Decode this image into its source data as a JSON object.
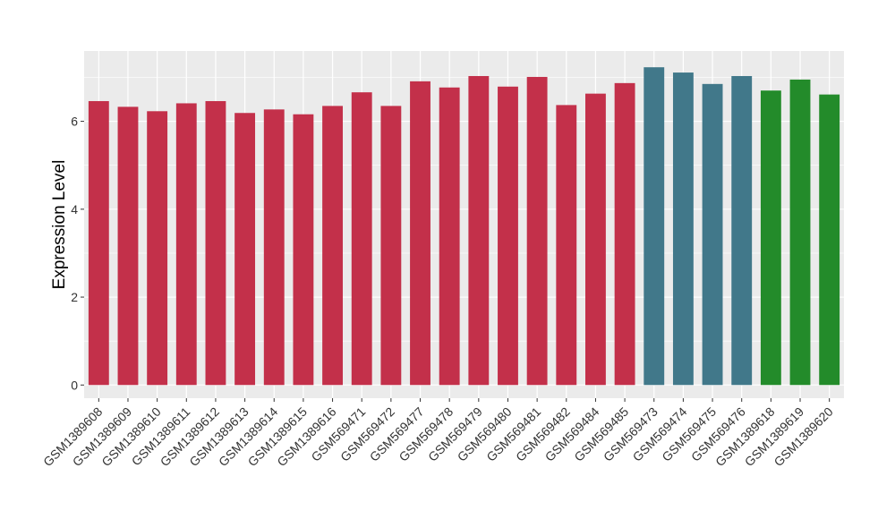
{
  "chart_data": {
    "type": "bar",
    "title": "",
    "xlabel": "",
    "ylabel": "Expression Level",
    "ylim": [
      -0.3,
      7.6
    ],
    "yticks": [
      0,
      2,
      4,
      6
    ],
    "grid": true,
    "legend": "none",
    "colors": {
      "red": "#C3304A",
      "teal": "#41788A",
      "green": "#238B2A",
      "panel_bg": "#EBEBEB",
      "grid_major": "#FFFFFF",
      "tick_mark": "#333333"
    },
    "categories": [
      "GSM1389608",
      "GSM1389609",
      "GSM1389610",
      "GSM1389611",
      "GSM1389612",
      "GSM1389613",
      "GSM1389614",
      "GSM1389615",
      "GSM1389616",
      "GSM569471",
      "GSM569472",
      "GSM569477",
      "GSM569478",
      "GSM569479",
      "GSM569480",
      "GSM569481",
      "GSM569482",
      "GSM569484",
      "GSM569485",
      "GSM569473",
      "GSM569474",
      "GSM569475",
      "GSM569476",
      "GSM1389618",
      "GSM1389619",
      "GSM1389620"
    ],
    "values": [
      6.46,
      6.33,
      6.23,
      6.41,
      6.46,
      6.19,
      6.27,
      6.16,
      6.35,
      6.66,
      6.35,
      6.91,
      6.77,
      7.03,
      6.79,
      7.01,
      6.37,
      6.63,
      6.87,
      7.23,
      7.11,
      6.85,
      7.03,
      6.7,
      6.95,
      6.61
    ],
    "bar_colors": [
      "red",
      "red",
      "red",
      "red",
      "red",
      "red",
      "red",
      "red",
      "red",
      "red",
      "red",
      "red",
      "red",
      "red",
      "red",
      "red",
      "red",
      "red",
      "red",
      "teal",
      "teal",
      "teal",
      "teal",
      "green",
      "green",
      "green"
    ]
  }
}
